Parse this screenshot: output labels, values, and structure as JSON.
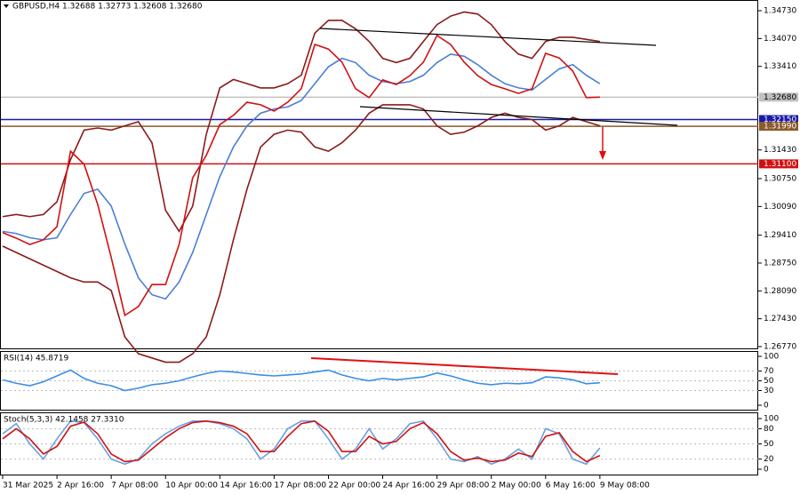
{
  "chart_data": [
    {
      "type": "line",
      "title": "GBPUSD,H4 1.32688 1.32773 1.32608 1.32680",
      "categories": [
        "31 Mar 2025",
        null,
        null,
        null,
        "2 Apr 16:00",
        null,
        null,
        null,
        "7 Apr 08:00",
        null,
        null,
        null,
        "10 Apr 00:00",
        null,
        null,
        null,
        "14 Apr 16:00",
        null,
        null,
        null,
        "17 Apr 08:00",
        null,
        null,
        null,
        "22 Apr 00:00",
        null,
        null,
        null,
        "24 Apr 16:00",
        null,
        null,
        null,
        "29 Apr 08:00",
        null,
        null,
        null,
        "2 May 00:00",
        null,
        null,
        null,
        "6 May 16:00",
        null,
        null,
        null,
        "9 May 08:00"
      ],
      "series": [
        {
          "color": "#8b1a1a",
          "values": [
            1.2985,
            1.299,
            1.2985,
            1.299,
            1.302,
            1.312,
            1.319,
            1.3195,
            1.319,
            1.32,
            1.321,
            1.316,
            1.3,
            1.295,
            1.301,
            1.318,
            1.329,
            1.331,
            1.33,
            1.329,
            1.329,
            1.33,
            1.332,
            1.342,
            1.345,
            1.345,
            1.343,
            1.34,
            1.336,
            1.335,
            1.336,
            1.34,
            1.344,
            1.346,
            1.347,
            1.3465,
            1.344,
            1.34,
            1.337,
            1.336,
            1.34,
            1.341,
            1.341,
            1.3405,
            1.34
          ]
        },
        {
          "color": "#8b1a1a",
          "values": [
            1.2915,
            1.29,
            1.2885,
            1.287,
            1.2855,
            1.284,
            1.283,
            1.283,
            1.281,
            1.27,
            1.266,
            1.265,
            1.264,
            1.264,
            1.266,
            1.27,
            1.28,
            1.293,
            1.305,
            1.315,
            1.318,
            1.319,
            1.3185,
            1.315,
            1.314,
            1.316,
            1.319,
            1.323,
            1.325,
            1.325,
            1.325,
            1.324,
            1.32,
            1.318,
            1.3185,
            1.32,
            1.322,
            1.323,
            1.322,
            1.3215,
            1.319,
            1.32,
            1.322,
            1.321,
            1.32
          ]
        },
        {
          "color": "#4a7fd4",
          "values": [
            1.295,
            1.2945,
            1.2935,
            1.293,
            1.2935,
            1.299,
            1.304,
            1.305,
            1.301,
            1.292,
            1.284,
            1.28,
            1.279,
            1.283,
            1.29,
            1.299,
            1.308,
            1.315,
            1.32,
            1.323,
            1.324,
            1.3245,
            1.326,
            1.33,
            1.334,
            1.336,
            1.335,
            1.332,
            1.3305,
            1.33,
            1.3305,
            1.332,
            1.335,
            1.337,
            1.3365,
            1.3345,
            1.332,
            1.33,
            1.329,
            1.3285,
            1.331,
            1.3335,
            1.3345,
            1.332,
            1.33
          ]
        },
        {
          "color": "#d01010",
          "values": [
            1.2947,
            1.2934,
            1.2919,
            1.293,
            1.2961,
            1.314,
            1.3109,
            1.3014,
            1.2888,
            1.2751,
            1.2772,
            1.2824,
            1.2824,
            1.2919,
            1.3077,
            1.313,
            1.3203,
            1.3225,
            1.3256,
            1.325,
            1.3235,
            1.3256,
            1.3288,
            1.3393,
            1.3382,
            1.3351,
            1.3288,
            1.3267,
            1.3309,
            1.3298,
            1.3319,
            1.3351,
            1.3414,
            1.3393,
            1.3351,
            1.3319,
            1.3298,
            1.3288,
            1.3277,
            1.3288,
            1.3372,
            1.3361,
            1.333,
            1.3267,
            1.3268
          ]
        }
      ],
      "ylim": [
        1.2677,
        1.3473
      ],
      "yticks": [
        {
          "value": 1.3473,
          "label": "1.34730"
        },
        {
          "value": 1.3407,
          "label": "1.34070"
        },
        {
          "value": 1.3341,
          "label": "1.33410"
        },
        {
          "value": 1.3143,
          "label": "1.31430"
        },
        {
          "value": 1.3075,
          "label": "1.30750"
        },
        {
          "value": 1.3009,
          "label": "1.30090"
        },
        {
          "value": 1.2941,
          "label": "1.29410"
        },
        {
          "value": 1.2875,
          "label": "1.28750"
        },
        {
          "value": 1.2809,
          "label": "1.28090"
        },
        {
          "value": 1.2743,
          "label": "1.27430"
        },
        {
          "value": 1.2677,
          "label": "1.26770"
        }
      ],
      "levels": [
        {
          "value": 1.3268,
          "label": "1.32680",
          "color": "#c0c0c0"
        },
        {
          "value": 1.3215,
          "label": "1.32150",
          "color": "#1a1aa6"
        },
        {
          "value": 1.3199,
          "label": "1.31990",
          "color": "#8b5a2b"
        },
        {
          "value": 1.311,
          "label": "1.31100",
          "color": "#d01010"
        }
      ]
    },
    {
      "type": "line",
      "title": "RSI(14) 45.8719",
      "series": [
        {
          "color": "#3a8ee6",
          "values": [
            52,
            45,
            40,
            48,
            60,
            72,
            55,
            45,
            40,
            30,
            35,
            42,
            45,
            50,
            58,
            65,
            70,
            68,
            65,
            62,
            60,
            62,
            64,
            68,
            72,
            62,
            55,
            50,
            55,
            52,
            55,
            58,
            66,
            60,
            52,
            45,
            42,
            45,
            44,
            46,
            58,
            56,
            52,
            44,
            46
          ]
        }
      ],
      "ylim": [
        0,
        100
      ],
      "yticks": [
        100,
        70,
        50,
        30,
        0
      ]
    },
    {
      "type": "line",
      "title": "Stoch(5,3,3) 42.1458 27.3310",
      "series": [
        {
          "color": "#6aa0e0",
          "values": [
            70,
            90,
            50,
            20,
            60,
            95,
            92,
            60,
            20,
            10,
            20,
            50,
            70,
            85,
            95,
            95,
            90,
            80,
            60,
            20,
            40,
            80,
            95,
            95,
            60,
            20,
            40,
            80,
            40,
            60,
            90,
            95,
            60,
            20,
            15,
            25,
            10,
            20,
            40,
            20,
            80,
            70,
            20,
            10,
            42
          ]
        },
        {
          "color": "#d01010",
          "values": [
            60,
            80,
            60,
            30,
            45,
            85,
            93,
            70,
            30,
            15,
            18,
            40,
            62,
            80,
            92,
            95,
            92,
            85,
            70,
            35,
            35,
            65,
            90,
            95,
            75,
            35,
            35,
            65,
            50,
            55,
            80,
            92,
            70,
            35,
            18,
            22,
            15,
            18,
            32,
            25,
            65,
            72,
            35,
            15,
            27
          ]
        }
      ],
      "ylim": [
        0,
        100
      ],
      "yticks": [
        100,
        80,
        50,
        20,
        0
      ]
    }
  ]
}
